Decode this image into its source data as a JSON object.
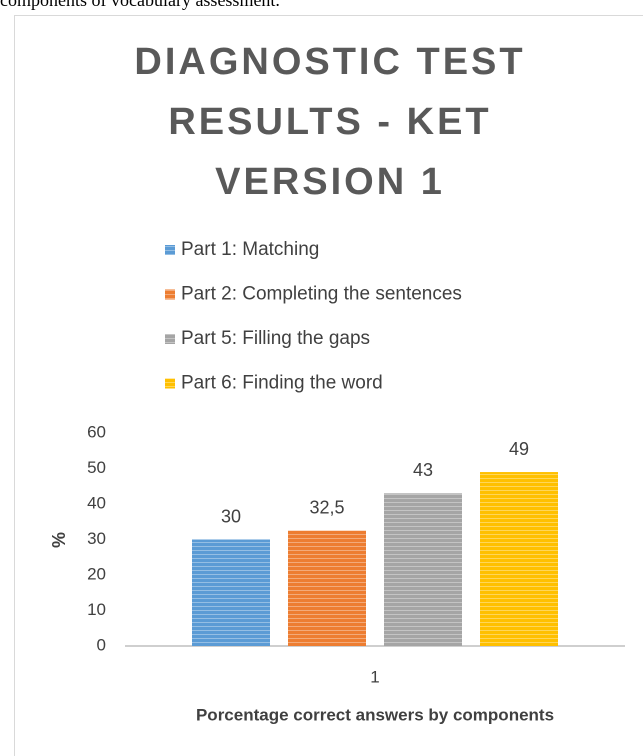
{
  "context_text": "components of vocabulary assessment.",
  "chart_data": {
    "type": "bar",
    "title_lines": [
      "DIAGNOSTIC TEST",
      "RESULTS - KET",
      "VERSION 1"
    ],
    "categories": [
      "1"
    ],
    "series": [
      {
        "name": "Part 1: Matching",
        "color": "#5b9bd5",
        "values": [
          30
        ],
        "value_labels": [
          "30"
        ]
      },
      {
        "name": "Part 2: Completing the sentences",
        "color": "#ed7d31",
        "values": [
          32.5
        ],
        "value_labels": [
          "32,5"
        ]
      },
      {
        "name": "Part 5: Filling the gaps",
        "color": "#a5a5a5",
        "values": [
          43
        ],
        "value_labels": [
          "43"
        ]
      },
      {
        "name": "Part 6: Finding the word",
        "color": "#ffc000",
        "values": [
          49
        ],
        "value_labels": [
          "49"
        ]
      }
    ],
    "y_label": "%",
    "x_label": "Porcentage correct answers by components",
    "ylim": [
      0,
      60
    ],
    "yticks": [
      0,
      10,
      20,
      30,
      40,
      50,
      60
    ],
    "grid": false,
    "legend": "top"
  }
}
